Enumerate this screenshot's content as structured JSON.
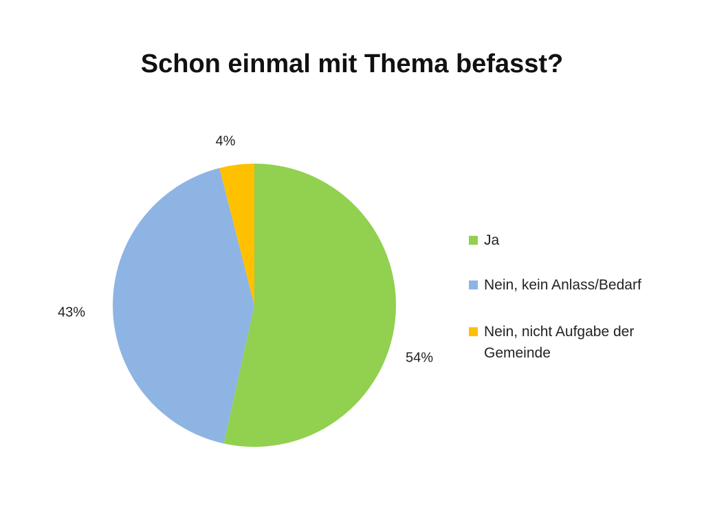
{
  "chart_data": {
    "type": "pie",
    "title": "Schon einmal mit Thema befasst?",
    "slices": [
      {
        "label": "Ja",
        "value": 54,
        "display": "54%",
        "color": "#92d050"
      },
      {
        "label": "Nein, kein Anlass/Bedarf",
        "value": 43,
        "display": "43%",
        "color": "#8eb4e3"
      },
      {
        "label": "Nein, nicht Aufgabe der Gemeinde",
        "value": 4,
        "display": "4%",
        "color": "#ffc000"
      }
    ],
    "start_angle": "12 o'clock",
    "direction": "clockwise",
    "legend_position": "right"
  }
}
